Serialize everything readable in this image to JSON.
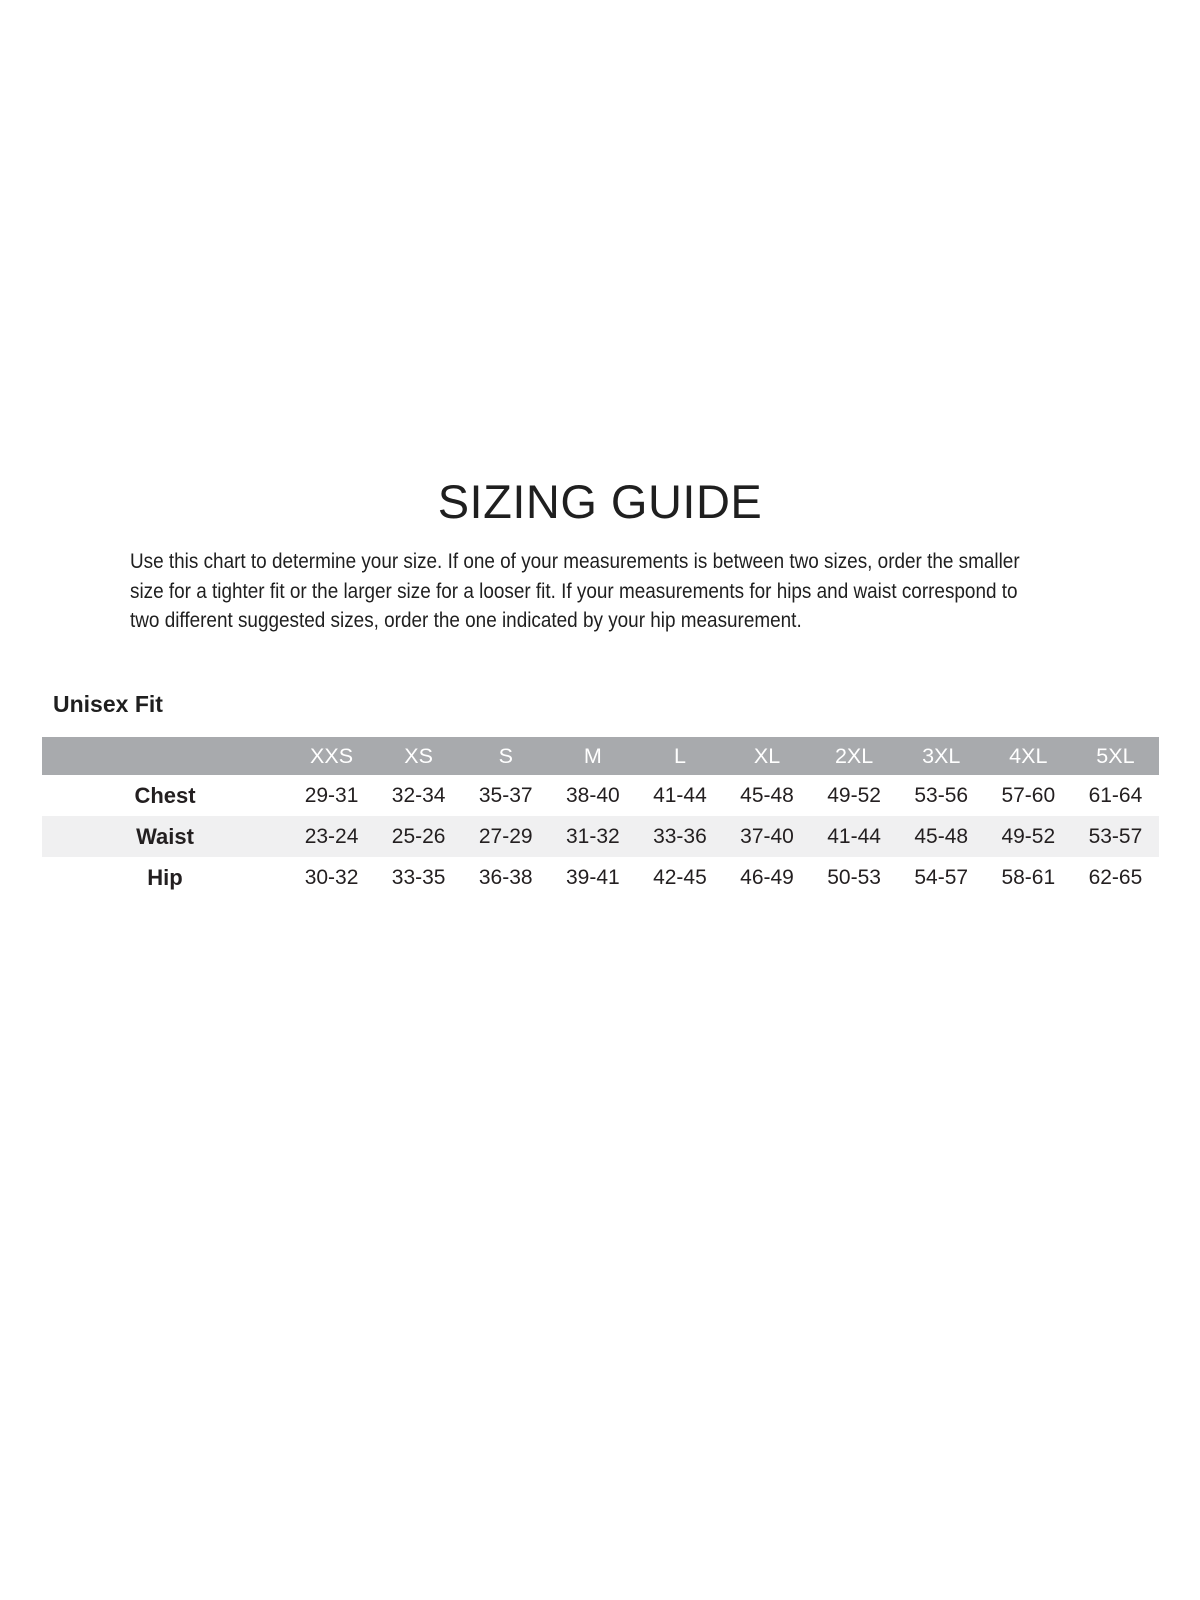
{
  "page": {
    "background": "#ffffff"
  },
  "title": "SIZING GUIDE",
  "intro": {
    "lines": [
      "Use this chart to determine your size. If one of your measurements is between two sizes, order the smaller",
      "size for a tighter fit or the larger size for a looser fit. If your measurements for hips and waist correspond to",
      "two different suggested sizes, order the one indicated by your hip measurement."
    ]
  },
  "section": {
    "heading": "Unisex Fit"
  },
  "table": {
    "header_fill": "#a8aaad",
    "header_text_color": "#ffffff",
    "alt_row_fill": "#f0f0f1",
    "text_color": "#231f20",
    "columns": [
      "XXS",
      "XS",
      "S",
      "M",
      "L",
      "XL",
      "2XL",
      "3XL",
      "4XL",
      "5XL"
    ],
    "rows": [
      {
        "label": "Chest",
        "values": [
          "29-31",
          "32-34",
          "35-37",
          "38-40",
          "41-44",
          "45-48",
          "49-52",
          "53-56",
          "57-60",
          "61-64"
        ]
      },
      {
        "label": "Waist",
        "values": [
          "23-24",
          "25-26",
          "27-29",
          "31-32",
          "33-36",
          "37-40",
          "41-44",
          "45-48",
          "49-52",
          "53-57"
        ]
      },
      {
        "label": "Hip",
        "values": [
          "30-32",
          "33-35",
          "36-38",
          "39-41",
          "42-45",
          "46-49",
          "50-53",
          "54-57",
          "58-61",
          "62-65"
        ]
      }
    ]
  }
}
